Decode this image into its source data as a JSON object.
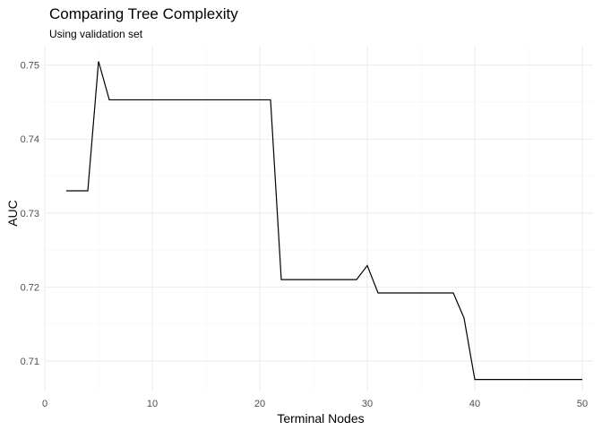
{
  "chart_data": {
    "type": "line",
    "title": "Comparing Tree Complexity",
    "subtitle": "Using validation set",
    "xlabel": "Terminal Nodes",
    "ylabel": "AUC",
    "xlim": [
      0,
      51
    ],
    "ylim": [
      0.706,
      0.7525
    ],
    "x_ticks": [
      0,
      10,
      20,
      30,
      40,
      50
    ],
    "x_tick_labels": [
      "0",
      "10",
      "20",
      "30",
      "40",
      "50"
    ],
    "y_ticks": [
      0.71,
      0.72,
      0.73,
      0.74,
      0.75
    ],
    "y_tick_labels": [
      "0.71",
      "0.72",
      "0.73",
      "0.74",
      "0.75"
    ],
    "grid": true,
    "x": [
      2,
      3,
      4,
      5,
      6,
      7,
      8,
      9,
      10,
      11,
      12,
      13,
      14,
      15,
      16,
      17,
      18,
      19,
      20,
      21,
      22,
      23,
      24,
      25,
      26,
      27,
      28,
      29,
      30,
      31,
      32,
      33,
      34,
      35,
      36,
      37,
      38,
      39,
      40,
      41,
      42,
      43,
      44,
      45,
      46,
      47,
      48,
      49,
      50
    ],
    "y": [
      0.733,
      0.733,
      0.733,
      0.7505,
      0.7453,
      0.7453,
      0.7453,
      0.7453,
      0.7453,
      0.7453,
      0.7453,
      0.7453,
      0.7453,
      0.7453,
      0.7453,
      0.7453,
      0.7453,
      0.7453,
      0.7453,
      0.7453,
      0.721,
      0.721,
      0.721,
      0.721,
      0.721,
      0.721,
      0.721,
      0.721,
      0.7229,
      0.7192,
      0.7192,
      0.7192,
      0.7192,
      0.7192,
      0.7192,
      0.7192,
      0.7192,
      0.7158,
      0.7075,
      0.7075,
      0.7075,
      0.7075,
      0.7075,
      0.7075,
      0.7075,
      0.7075,
      0.7075,
      0.7075,
      0.7075
    ]
  }
}
